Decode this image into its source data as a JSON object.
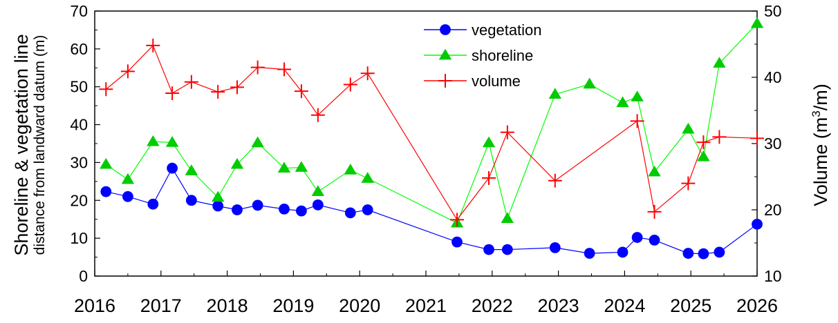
{
  "chart_data": {
    "type": "line",
    "x_axis": {
      "ticks": [
        2016,
        2017,
        2018,
        2019,
        2020,
        2021,
        2022,
        2023,
        2024,
        2025,
        2026
      ],
      "range": [
        2016,
        2026
      ],
      "minor_step": 0.5
    },
    "y_left": {
      "label_line1": "Shoreline & vegetation line",
      "label_line2": "distance from landward datum (m)",
      "range": [
        0,
        70
      ],
      "ticks": [
        0,
        10,
        20,
        30,
        40,
        50,
        60,
        70
      ],
      "minor_step": 5
    },
    "y_right": {
      "label": "Volume (m³/m)",
      "label_main": "Volume (m",
      "label_sup": "3",
      "label_tail": "/m)",
      "range": [
        10,
        50
      ],
      "ticks": [
        10,
        20,
        30,
        40,
        50
      ],
      "minor_step": 5
    },
    "legend_position": "top-center",
    "grid": false,
    "series": [
      {
        "name": "vegetation",
        "axis": "left",
        "color": "#0000ff",
        "line_color": "#0000ff",
        "marker": "circle",
        "x": [
          2016.17,
          2016.5,
          2016.88,
          2017.17,
          2017.46,
          2017.86,
          2018.15,
          2018.46,
          2018.86,
          2019.12,
          2019.37,
          2019.86,
          2020.12,
          2021.47,
          2021.95,
          2022.23,
          2022.95,
          2023.47,
          2023.97,
          2024.19,
          2024.45,
          2024.96,
          2025.19,
          2025.43,
          2026.0
        ],
        "y": [
          22.3,
          21.0,
          19.0,
          28.5,
          20.0,
          18.5,
          17.5,
          18.7,
          17.7,
          17.2,
          18.8,
          16.7,
          17.5,
          9.0,
          7.0,
          7.0,
          7.5,
          6.0,
          6.3,
          10.2,
          9.5,
          6.0,
          5.9,
          6.3,
          13.7
        ]
      },
      {
        "name": "shoreline",
        "axis": "left",
        "color": "#00cc00",
        "line_color": "#00ff00",
        "marker": "triangle",
        "x": [
          2016.17,
          2016.5,
          2016.88,
          2017.17,
          2017.46,
          2017.86,
          2018.15,
          2018.46,
          2018.86,
          2019.12,
          2019.37,
          2019.86,
          2020.12,
          2021.47,
          2021.95,
          2022.23,
          2022.95,
          2023.47,
          2023.97,
          2024.19,
          2024.45,
          2024.96,
          2025.19,
          2025.43,
          2026.0
        ],
        "y": [
          29.5,
          25.5,
          35.5,
          35.3,
          27.8,
          20.8,
          29.5,
          35.2,
          28.5,
          28.7,
          22.3,
          28.0,
          25.8,
          14.0,
          35.2,
          15.2,
          48.0,
          50.7,
          45.8,
          47.3,
          27.5,
          38.8,
          31.5,
          56.2,
          66.7
        ]
      },
      {
        "name": "volume",
        "axis": "right",
        "color": "#ff0000",
        "line_color": "#ff0000",
        "marker": "plus",
        "x": [
          2016.17,
          2016.5,
          2016.88,
          2017.17,
          2017.46,
          2017.86,
          2018.15,
          2018.46,
          2018.86,
          2019.12,
          2019.37,
          2019.86,
          2020.12,
          2021.47,
          2021.95,
          2022.23,
          2022.95,
          2024.19,
          2024.45,
          2024.96,
          2025.19,
          2025.43,
          2026.0
        ],
        "y": [
          38.2,
          40.9,
          44.8,
          37.6,
          39.3,
          37.8,
          38.5,
          41.5,
          41.2,
          37.9,
          34.3,
          38.9,
          40.6,
          18.5,
          24.8,
          31.7,
          24.4,
          33.4,
          19.7,
          24.0,
          30.2,
          31.0,
          30.8
        ]
      }
    ]
  }
}
